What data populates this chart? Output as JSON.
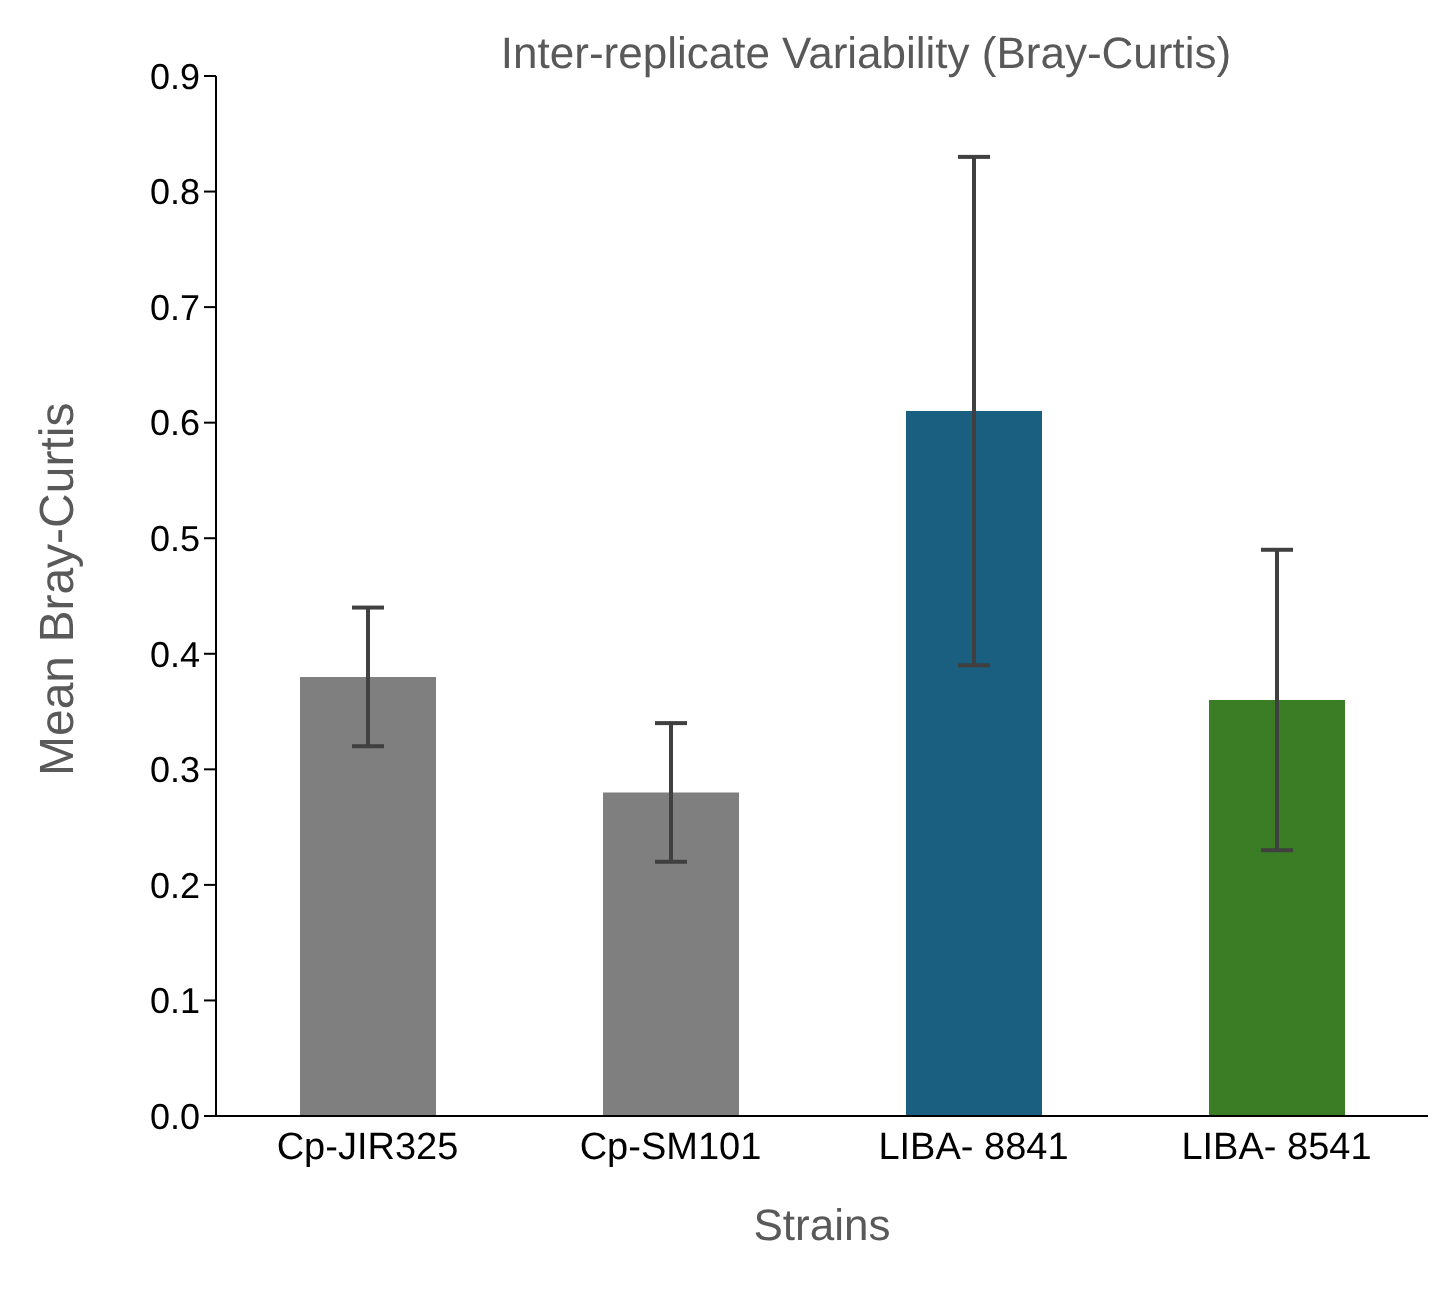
{
  "chart_data": {
    "type": "bar",
    "title": "Inter-replicate Variability (Bray-Curtis)",
    "xlabel": "Strains",
    "ylabel": "Mean Bray-Curtis",
    "categories": [
      "Cp-JIR325",
      "Cp-SM101",
      "LIBA- 8841",
      "LIBA- 8541"
    ],
    "values": [
      0.38,
      0.28,
      0.61,
      0.36
    ],
    "errors": [
      0.06,
      0.06,
      0.22,
      0.13
    ],
    "colors": [
      "#7f7f7f",
      "#7f7f7f",
      "#1a5e80",
      "#3a7d24"
    ],
    "ylim": [
      0,
      0.9
    ],
    "yticks": [
      {
        "value": 0,
        "label": "0.0"
      },
      0.1,
      0.2,
      0.3,
      0.4,
      0.5,
      0.6,
      0.7,
      0.8,
      0.9
    ],
    "grid": false,
    "legend": false
  }
}
